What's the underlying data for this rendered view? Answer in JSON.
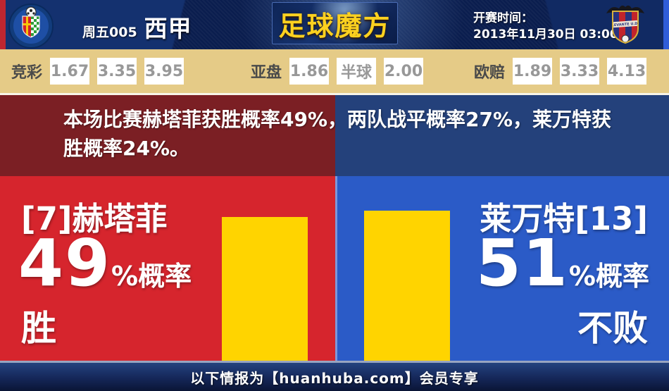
{
  "header": {
    "match_number": "周五005",
    "league": "西甲",
    "brand": "足球魔方",
    "kickoff_label": "开赛时间：",
    "kickoff_time": "2013年11月30日 03:00",
    "home_crest": "getafe-crest",
    "away_crest": "levante-crest"
  },
  "odds": {
    "groups": [
      {
        "label": "竞彩",
        "values": [
          "1.67",
          "3.35",
          "3.95"
        ]
      },
      {
        "label": "亚盘",
        "values": [
          "1.86",
          "半球",
          "2.00"
        ]
      },
      {
        "label": "欧赔",
        "values": [
          "1.89",
          "3.33",
          "4.13"
        ]
      }
    ]
  },
  "summary": {
    "text": "本场比赛赫塔菲获胜概率49%，两队战平概率27%，莱万特获胜概率24%。"
  },
  "prediction": {
    "home": {
      "team": "[7]赫塔菲",
      "percent": "49",
      "suffix": "%概率",
      "outcome": "胜",
      "bar_percent": 49
    },
    "away": {
      "team": "莱万特[13]",
      "percent": "51",
      "suffix": "%概率",
      "outcome": "不败",
      "bar_percent": 51
    }
  },
  "footer": {
    "text": "以下情报为【huanhuba.com】会员专享"
  },
  "colors": {
    "home_red": "#d6252d",
    "away_blue": "#2b5bc7",
    "summary_red": "#7b1f24",
    "summary_blue": "#24417b",
    "bar_yellow": "#ffd400",
    "odds_bar_tan": "#e5cb87",
    "brand_gold": "#fcd11f"
  }
}
